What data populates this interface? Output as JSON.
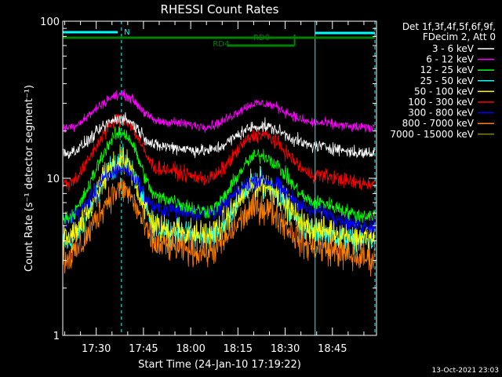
{
  "chart_data": {
    "type": "line",
    "title": "RHESSI Count Rates",
    "xlabel": "Start Time (24-Jan-10 17:19:22)",
    "ylabel": "Count Rate (s⁻¹ detector segment⁻¹)",
    "yscale": "log",
    "ylim": [
      1,
      100
    ],
    "xlim": [
      "17:19:22",
      "18:59:00"
    ],
    "x_ticks": [
      "17:30",
      "17:45",
      "18:00",
      "18:15",
      "18:30",
      "18:45"
    ],
    "y_ticks": [
      "1",
      "10",
      "100"
    ],
    "grid": false,
    "legend_position": "top-right",
    "legend_header": [
      "Det 1f,3f,4f,5f,6f,9f,",
      "FDecim 2, Att 0"
    ],
    "timestamp": "13-Oct-2021 23:03",
    "key_times": [
      "17:20:00",
      "17:38:15",
      "17:50:00",
      "18:05:00",
      "18:22:00",
      "18:40:00",
      "18:55:00"
    ],
    "series": [
      {
        "name": "3 - 6 keV",
        "color": "#ffffff",
        "noise": 0.05,
        "values": [
          14.5,
          24.0,
          16.0,
          15.0,
          21.5,
          16.0,
          14.5
        ]
      },
      {
        "name": "6 - 12 keV",
        "color": "#ff00ff",
        "noise": 0.04,
        "values": [
          21.0,
          34.0,
          23.0,
          21.5,
          30.0,
          22.5,
          21.0
        ]
      },
      {
        "name": "12 - 25 keV",
        "color": "#00ff00",
        "noise": 0.06,
        "values": [
          5.6,
          19.5,
          7.5,
          6.2,
          14.0,
          7.0,
          5.8
        ]
      },
      {
        "name": "25 - 50 keV",
        "color": "#00ffff",
        "noise": 0.1,
        "values": [
          3.8,
          13.0,
          4.8,
          4.2,
          9.5,
          4.5,
          4.0
        ]
      },
      {
        "name": "50 - 100 keV",
        "color": "#ffff00",
        "noise": 0.12,
        "values": [
          4.1,
          12.5,
          4.8,
          4.4,
          9.2,
          4.7,
          4.2
        ]
      },
      {
        "name": "100 - 300 keV",
        "color": "#ff0000",
        "noise": 0.06,
        "values": [
          9.2,
          24.0,
          11.5,
          10.0,
          19.0,
          10.5,
          9.3
        ]
      },
      {
        "name": "300 - 800 keV",
        "color": "#0000ff",
        "noise": 0.07,
        "values": [
          5.5,
          11.5,
          6.4,
          6.0,
          9.8,
          6.2,
          5.0
        ]
      },
      {
        "name": "800 - 7000 keV",
        "color": "#ff8000",
        "noise": 0.12,
        "values": [
          3.1,
          8.5,
          3.7,
          3.4,
          6.5,
          3.6,
          3.1
        ]
      },
      {
        "name": "7000 - 15000 keV",
        "color": "#808000",
        "noise": 0.0,
        "values": []
      }
    ],
    "attenuator_annotations": [
      {
        "label": "N",
        "color": "#00ffff",
        "segments": [
          [
            "17:19:22",
            "17:36:50"
          ],
          [
            "18:39:30",
            "18:58:30"
          ]
        ]
      },
      {
        "label": "RD0",
        "color": "#008000",
        "segments": [
          [
            "17:19:22",
            "18:33:00"
          ],
          [
            "18:33:00",
            "18:58:30"
          ]
        ]
      },
      {
        "label": "RD4",
        "color": "#008000",
        "segments": [
          [
            "18:11:30",
            "18:33:00"
          ]
        ]
      }
    ],
    "vertical_markers": [
      {
        "time": "17:19:22",
        "color": "#00ffff",
        "style": "solid"
      },
      {
        "time": "17:38:00",
        "color": "#00ffff",
        "style": "dashed"
      },
      {
        "time": "18:39:30",
        "color": "#00ffff",
        "style": "solid"
      },
      {
        "time": "18:58:30",
        "color": "#00ffff",
        "style": "dashed"
      }
    ]
  }
}
